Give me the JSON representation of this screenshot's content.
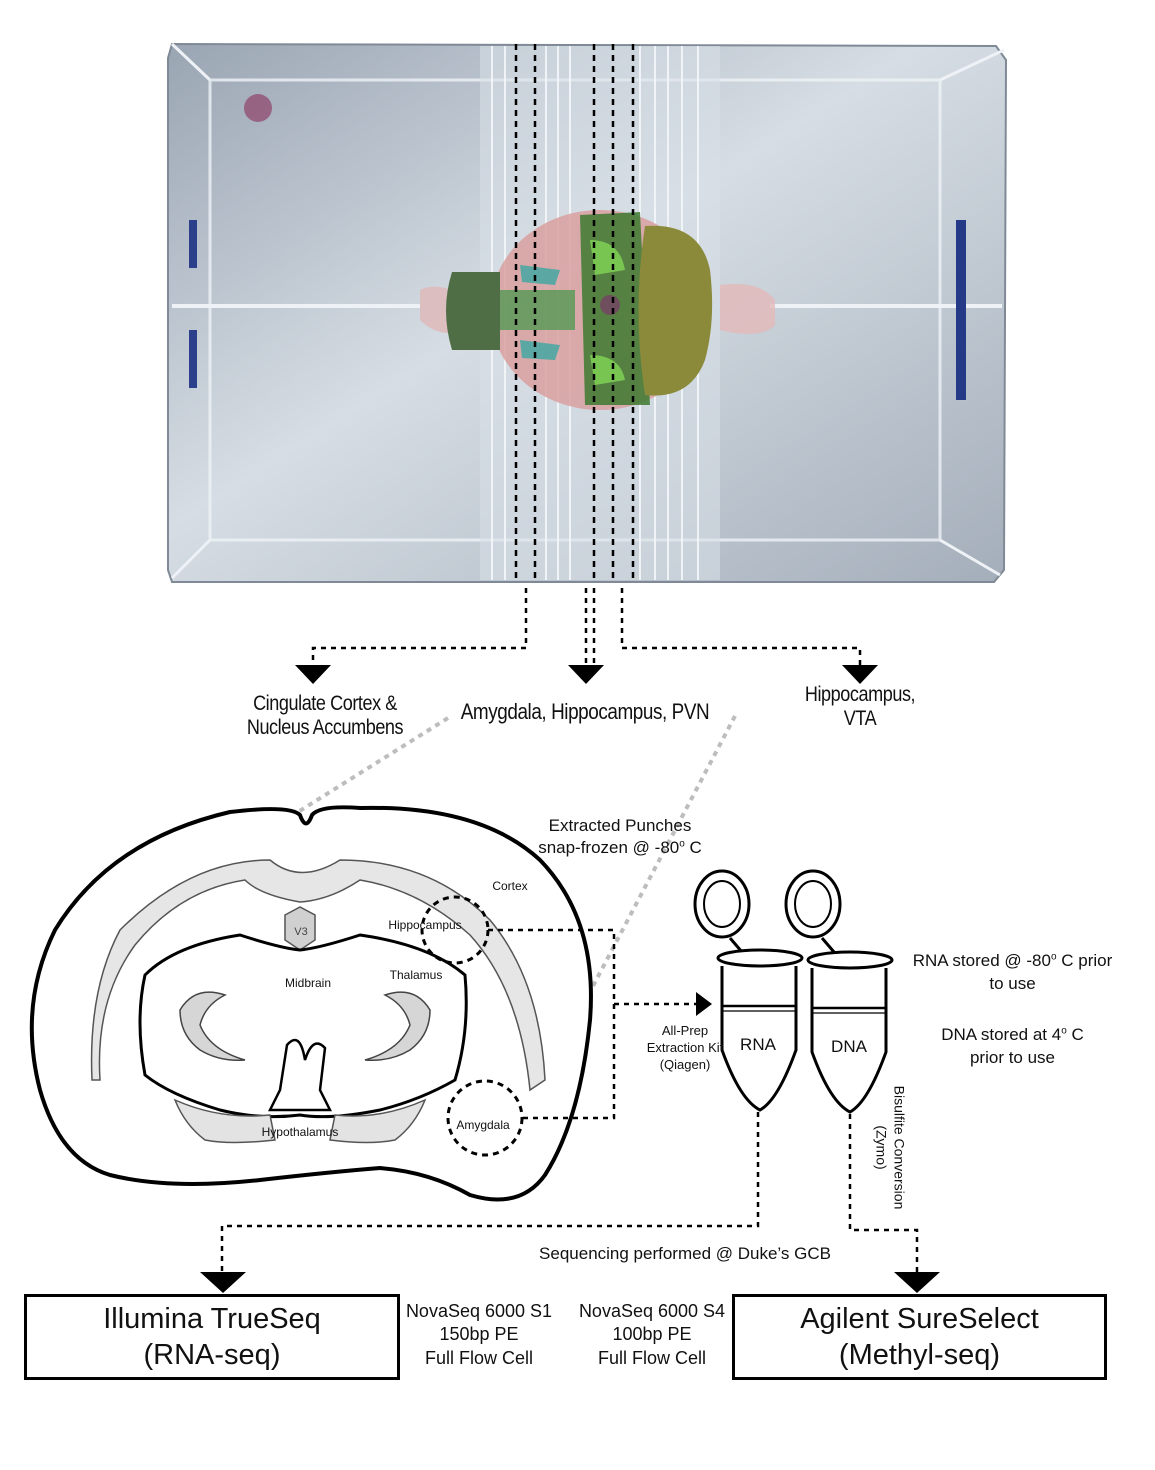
{
  "regions": {
    "left": [
      "Cingulate Cortex &",
      "Nucleus Accumbens"
    ],
    "middle": "Amygdala, Hippocampus, PVN",
    "right": [
      "Hippocampus,",
      "VTA"
    ]
  },
  "brain_labels": {
    "cortex": "Cortex",
    "hippocampus": "Hippocampus",
    "v3": "V3",
    "midbrain": "Midbrain",
    "thalamus": "Thalamus",
    "hypothalamus": "Hypothalamus",
    "amygdala": "Amygdala"
  },
  "punches": [
    "Extracted Punches",
    "snap-frozen @ -80",
    "o",
    " C"
  ],
  "extraction": [
    "All-Prep",
    "Extraction Kit",
    "(Qiagen)"
  ],
  "tubes": {
    "rna": "RNA",
    "dna": "DNA"
  },
  "storage": {
    "rna": [
      "RNA stored @ -80",
      "o",
      " C prior",
      "to use"
    ],
    "dna": [
      "DNA stored at 4",
      "o",
      " C",
      "prior to use"
    ]
  },
  "bisulfite": [
    "Bisulfite Conversion",
    "(Zymo)"
  ],
  "sequencing_note": "Sequencing performed @ Duke’s GCB",
  "outputs": {
    "left": {
      "line1": "Illumina TrueSeq",
      "line2": "(RNA-seq)"
    },
    "right": {
      "line1": "Agilent SureSelect",
      "line2": "(Methyl-seq)"
    }
  },
  "specs": {
    "s1": [
      "NovaSeq 6000 S1",
      "150bp PE",
      "Full Flow Cell"
    ],
    "s4": [
      "NovaSeq 6000 S4",
      "100bp PE",
      "Full Flow Cell"
    ]
  },
  "colors": {
    "region_green": "#4f8a3c",
    "region_light_green": "#79c552",
    "region_olive": "#8a8a3a",
    "region_teal": "#5aa7a3",
    "brain_pink": "#d9a0a0",
    "block_bg": "#b9c2cc",
    "stroke": "#000000",
    "grey_connector": "#bdbdbd"
  }
}
